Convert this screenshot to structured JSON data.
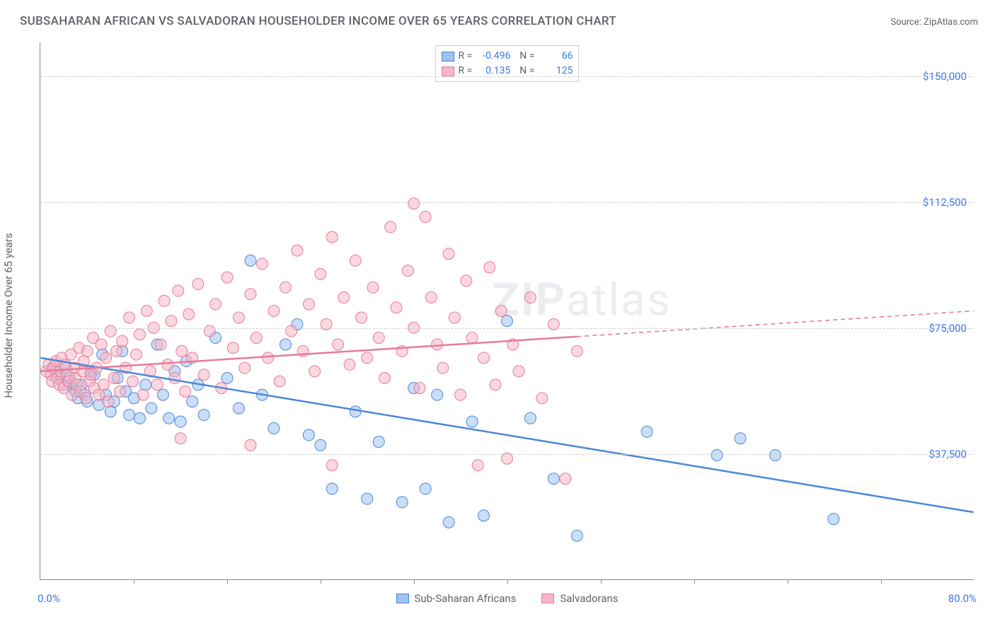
{
  "title": "SUBSAHARAN AFRICAN VS SALVADORAN HOUSEHOLDER INCOME OVER 65 YEARS CORRELATION CHART",
  "source": "Source: ZipAtlas.com",
  "watermark_bold": "ZIP",
  "watermark_rest": "atlas",
  "chart": {
    "type": "scatter-with-trendlines",
    "y_axis_label": "Householder Income Over 65 years",
    "xlim": [
      0,
      80
    ],
    "ylim": [
      0,
      160000
    ],
    "x_start_label": "0.0%",
    "x_end_label": "80.0%",
    "y_ticks": [
      {
        "v": 37500,
        "label": "$37,500"
      },
      {
        "v": 75000,
        "label": "$75,000"
      },
      {
        "v": 112500,
        "label": "$112,500"
      },
      {
        "v": 150000,
        "label": "$150,000"
      }
    ],
    "x_tick_step": 8,
    "background_color": "#ffffff",
    "grid_color": "#d0d0d0",
    "marker_radius": 8,
    "marker_opacity": 0.55,
    "series": [
      {
        "name": "Sub-Saharan Africans",
        "color_fill": "#9ec2f2",
        "color_stroke": "#4f86d9",
        "R": "-0.496",
        "N": "66",
        "trend": {
          "x1": 0,
          "y1": 66000,
          "x2": 80,
          "y2": 20000,
          "solid_until_x": 80,
          "style": "solid"
        },
        "points": [
          [
            1,
            63000
          ],
          [
            1.3,
            62000
          ],
          [
            1.6,
            60500
          ],
          [
            2,
            58000
          ],
          [
            2.2,
            63000
          ],
          [
            2.5,
            60000
          ],
          [
            2.8,
            57000
          ],
          [
            3,
            56000
          ],
          [
            3.2,
            54000
          ],
          [
            3.5,
            58000
          ],
          [
            3.8,
            55000
          ],
          [
            4,
            53000
          ],
          [
            4.3,
            62000
          ],
          [
            4.6,
            61000
          ],
          [
            5,
            52000
          ],
          [
            5.3,
            67000
          ],
          [
            5.6,
            55000
          ],
          [
            6,
            50000
          ],
          [
            6.3,
            53000
          ],
          [
            6.6,
            60000
          ],
          [
            7,
            68000
          ],
          [
            7.3,
            56000
          ],
          [
            7.6,
            49000
          ],
          [
            8,
            54000
          ],
          [
            8.5,
            48000
          ],
          [
            9,
            58000
          ],
          [
            9.5,
            51000
          ],
          [
            10,
            70000
          ],
          [
            10.5,
            55000
          ],
          [
            11,
            48000
          ],
          [
            11.5,
            62000
          ],
          [
            12,
            47000
          ],
          [
            12.5,
            65000
          ],
          [
            13,
            53000
          ],
          [
            13.5,
            58000
          ],
          [
            14,
            49000
          ],
          [
            15,
            72000
          ],
          [
            16,
            60000
          ],
          [
            17,
            51000
          ],
          [
            18,
            95000
          ],
          [
            19,
            55000
          ],
          [
            20,
            45000
          ],
          [
            21,
            70000
          ],
          [
            22,
            76000
          ],
          [
            23,
            43000
          ],
          [
            24,
            40000
          ],
          [
            25,
            27000
          ],
          [
            27,
            50000
          ],
          [
            28,
            24000
          ],
          [
            29,
            41000
          ],
          [
            31,
            23000
          ],
          [
            32,
            57000
          ],
          [
            33,
            27000
          ],
          [
            34,
            55000
          ],
          [
            35,
            17000
          ],
          [
            37,
            47000
          ],
          [
            38,
            19000
          ],
          [
            40,
            77000
          ],
          [
            42,
            48000
          ],
          [
            44,
            30000
          ],
          [
            46,
            13000
          ],
          [
            52,
            44000
          ],
          [
            58,
            37000
          ],
          [
            60,
            42000
          ],
          [
            63,
            37000
          ],
          [
            68,
            18000
          ]
        ]
      },
      {
        "name": "Salvadorans",
        "color_fill": "#f7b6c5",
        "color_stroke": "#e87a99",
        "R": "0.135",
        "N": "125",
        "trend": {
          "x1": 0,
          "y1": 62000,
          "x2": 80,
          "y2": 80000,
          "solid_until_x": 46,
          "style": "solid-then-dashed"
        },
        "points": [
          [
            0.5,
            62000
          ],
          [
            0.7,
            64000
          ],
          [
            0.9,
            61000
          ],
          [
            1,
            59000
          ],
          [
            1.1,
            63000
          ],
          [
            1.3,
            65000
          ],
          [
            1.4,
            60000
          ],
          [
            1.6,
            58000
          ],
          [
            1.7,
            62000
          ],
          [
            1.8,
            66000
          ],
          [
            2,
            57000
          ],
          [
            2.1,
            64000
          ],
          [
            2.3,
            61000
          ],
          [
            2.4,
            59000
          ],
          [
            2.6,
            67000
          ],
          [
            2.7,
            55000
          ],
          [
            2.9,
            63000
          ],
          [
            3,
            60000
          ],
          [
            3.1,
            58000
          ],
          [
            3.3,
            69000
          ],
          [
            3.4,
            56000
          ],
          [
            3.6,
            62000
          ],
          [
            3.7,
            65000
          ],
          [
            3.9,
            54000
          ],
          [
            4,
            68000
          ],
          [
            4.2,
            59000
          ],
          [
            4.3,
            61000
          ],
          [
            4.5,
            72000
          ],
          [
            4.6,
            57000
          ],
          [
            4.8,
            63000
          ],
          [
            5,
            55000
          ],
          [
            5.2,
            70000
          ],
          [
            5.4,
            58000
          ],
          [
            5.6,
            66000
          ],
          [
            5.8,
            53000
          ],
          [
            6,
            74000
          ],
          [
            6.3,
            60000
          ],
          [
            6.5,
            68000
          ],
          [
            6.8,
            56000
          ],
          [
            7,
            71000
          ],
          [
            7.3,
            63000
          ],
          [
            7.6,
            78000
          ],
          [
            7.9,
            59000
          ],
          [
            8.2,
            67000
          ],
          [
            8.5,
            73000
          ],
          [
            8.8,
            55000
          ],
          [
            9.1,
            80000
          ],
          [
            9.4,
            62000
          ],
          [
            9.7,
            75000
          ],
          [
            10,
            58000
          ],
          [
            10.3,
            70000
          ],
          [
            10.6,
            83000
          ],
          [
            10.9,
            64000
          ],
          [
            11.2,
            77000
          ],
          [
            11.5,
            60000
          ],
          [
            11.8,
            86000
          ],
          [
            12.1,
            68000
          ],
          [
            12.4,
            56000
          ],
          [
            12.7,
            79000
          ],
          [
            13,
            66000
          ],
          [
            13.5,
            88000
          ],
          [
            14,
            61000
          ],
          [
            14.5,
            74000
          ],
          [
            15,
            82000
          ],
          [
            15.5,
            57000
          ],
          [
            16,
            90000
          ],
          [
            16.5,
            69000
          ],
          [
            17,
            78000
          ],
          [
            17.5,
            63000
          ],
          [
            18,
            85000
          ],
          [
            18.5,
            72000
          ],
          [
            19,
            94000
          ],
          [
            19.5,
            66000
          ],
          [
            20,
            80000
          ],
          [
            20.5,
            59000
          ],
          [
            21,
            87000
          ],
          [
            21.5,
            74000
          ],
          [
            22,
            98000
          ],
          [
            22.5,
            68000
          ],
          [
            23,
            82000
          ],
          [
            23.5,
            62000
          ],
          [
            24,
            91000
          ],
          [
            24.5,
            76000
          ],
          [
            25,
            102000
          ],
          [
            25.5,
            70000
          ],
          [
            26,
            84000
          ],
          [
            26.5,
            64000
          ],
          [
            27,
            95000
          ],
          [
            27.5,
            78000
          ],
          [
            28,
            66000
          ],
          [
            28.5,
            87000
          ],
          [
            29,
            72000
          ],
          [
            29.5,
            60000
          ],
          [
            30,
            105000
          ],
          [
            30.5,
            81000
          ],
          [
            31,
            68000
          ],
          [
            31.5,
            92000
          ],
          [
            32,
            75000
          ],
          [
            32.5,
            57000
          ],
          [
            33,
            108000
          ],
          [
            33.5,
            84000
          ],
          [
            34,
            70000
          ],
          [
            34.5,
            63000
          ],
          [
            35,
            97000
          ],
          [
            35.5,
            78000
          ],
          [
            36,
            55000
          ],
          [
            36.5,
            89000
          ],
          [
            37,
            72000
          ],
          [
            37.5,
            34000
          ],
          [
            38,
            66000
          ],
          [
            38.5,
            93000
          ],
          [
            39,
            58000
          ],
          [
            39.5,
            80000
          ],
          [
            40,
            36000
          ],
          [
            40.5,
            70000
          ],
          [
            41,
            62000
          ],
          [
            42,
            84000
          ],
          [
            43,
            54000
          ],
          [
            44,
            76000
          ],
          [
            45,
            30000
          ],
          [
            46,
            68000
          ],
          [
            32,
            112000
          ],
          [
            25,
            34000
          ],
          [
            18,
            40000
          ],
          [
            12,
            42000
          ]
        ]
      }
    ]
  }
}
